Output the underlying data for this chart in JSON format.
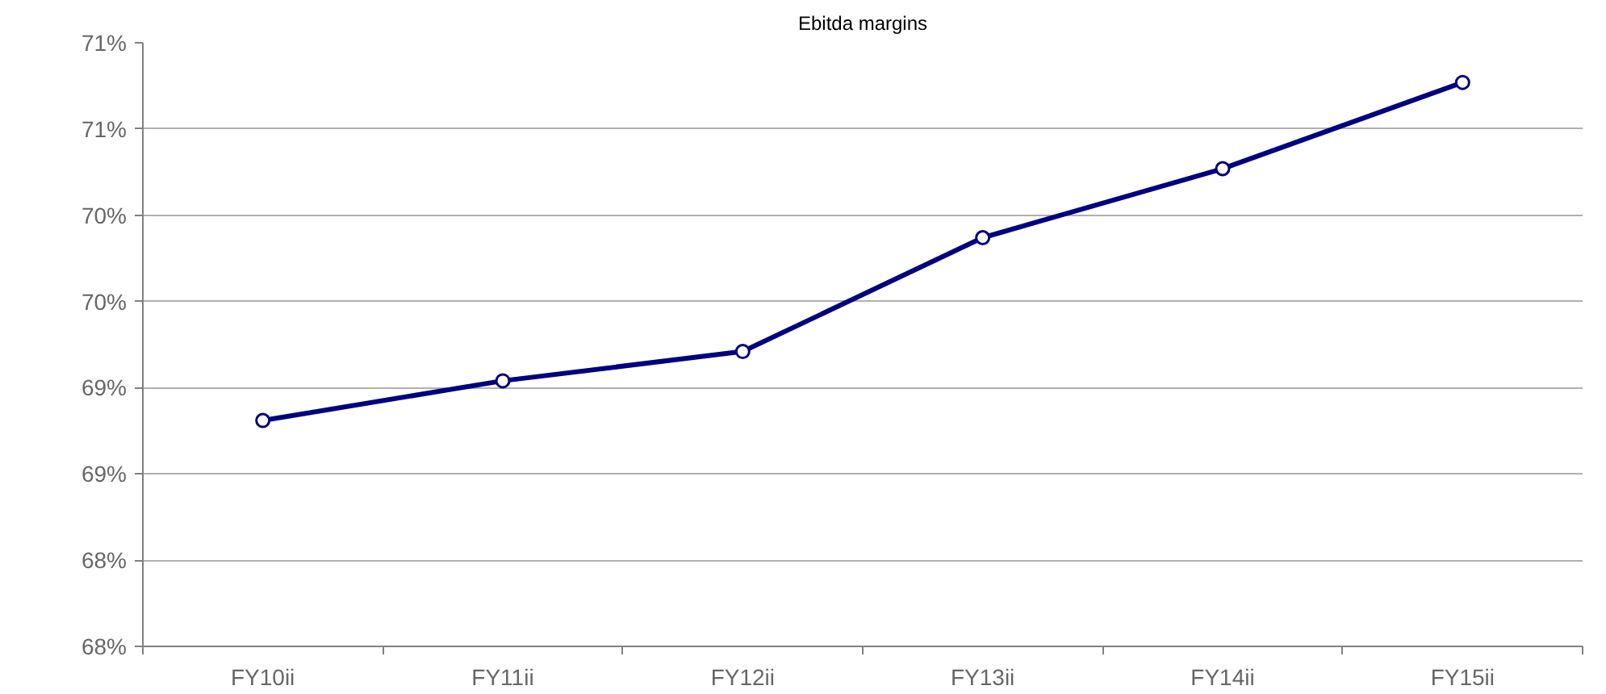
{
  "chart_data": {
    "type": "line",
    "title": "Ebitda margins",
    "categories": [
      "FY10ii",
      "FY11ii",
      "FY12ii",
      "FY13ii",
      "FY14ii",
      "FY15ii"
    ],
    "series": [
      {
        "color": "#000080",
        "values": [
          69.06,
          69.29,
          69.46,
          70.12,
          70.52,
          71.02
        ]
      }
    ],
    "ylim": [
      67.75,
      71.25
    ],
    "yticks": [
      {
        "value": 67.75,
        "label": "68%"
      },
      {
        "value": 68.25,
        "label": "68%"
      },
      {
        "value": 68.75,
        "label": "69%"
      },
      {
        "value": 69.25,
        "label": "69%"
      },
      {
        "value": 69.75,
        "label": "70%"
      },
      {
        "value": 70.25,
        "label": "70%"
      },
      {
        "value": 70.75,
        "label": "71%"
      },
      {
        "value": 71.25,
        "label": "71%"
      }
    ],
    "grid": "y",
    "marker": "circle",
    "line_style": "solid"
  }
}
